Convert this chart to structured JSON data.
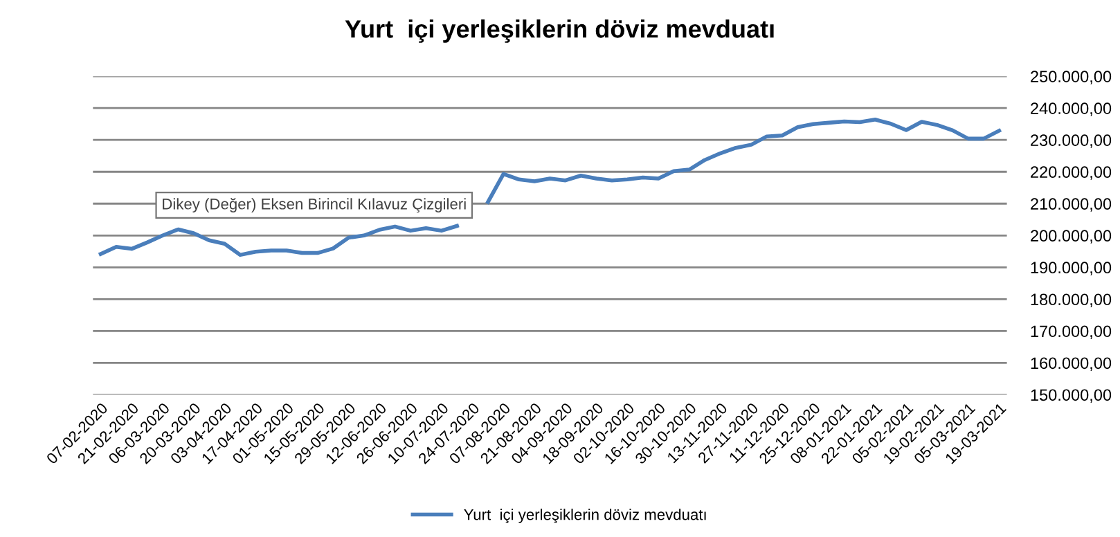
{
  "chart_data": {
    "type": "line",
    "title": "Yurt  içi yerleşiklerin döviz mevduatı",
    "categories": [
      "07-02-2020",
      null,
      "21-02-2020",
      null,
      "06-03-2020",
      null,
      "20-03-2020",
      null,
      "03-04-2020",
      null,
      "17-04-2020",
      null,
      "01-05-2020",
      null,
      "15-05-2020",
      null,
      "29-05-2020",
      null,
      "12-06-2020",
      null,
      "26-06-2020",
      null,
      "10-07-2020",
      null,
      "24-07-2020",
      null,
      "07-08-2020",
      null,
      "21-08-2020",
      null,
      "04-09-2020",
      null,
      "18-09-2020",
      null,
      "02-10-2020",
      null,
      "16-10-2020",
      null,
      "30-10-2020",
      null,
      "13-11-2020",
      null,
      "27-11-2020",
      null,
      "11-12-2020",
      null,
      "25-12-2020",
      null,
      "08-01-2021",
      null,
      "22-01-2021",
      null,
      "05-02-2021",
      null,
      "19-02-2021",
      null,
      "05-03-2021",
      null,
      "19-03-2021"
    ],
    "series": [
      {
        "name": "Yurt  içi yerleşiklerin döviz mevduatı",
        "color": "#4a7ebb",
        "values": [
          194200,
          196400,
          195800,
          197800,
          200000,
          201900,
          200700,
          198500,
          197400,
          193900,
          194900,
          195300,
          195300,
          194500,
          194500,
          195900,
          199300,
          200000,
          201800,
          202800,
          201500,
          202300,
          201500,
          203000,
          null,
          210500,
          219300,
          217600,
          217000,
          217900,
          217300,
          218800,
          217900,
          217300,
          217600,
          218200,
          217900,
          220200,
          220700,
          223700,
          225800,
          227500,
          228500,
          231100,
          231400,
          234000,
          235000,
          235400,
          235800,
          235600,
          236400,
          235100,
          233100,
          235700,
          234700,
          233000,
          230400,
          230400,
          232900
        ]
      }
    ],
    "ylim": [
      150000,
      250000
    ],
    "yticks": [
      {
        "value": 150000,
        "label": "150.000,00"
      },
      {
        "value": 160000,
        "label": "160.000,00"
      },
      {
        "value": 170000,
        "label": "170.000,00"
      },
      {
        "value": 180000,
        "label": "180.000,00"
      },
      {
        "value": 190000,
        "label": "190.000,00"
      },
      {
        "value": 200000,
        "label": "200.000,00"
      },
      {
        "value": 210000,
        "label": "210.000,00"
      },
      {
        "value": 220000,
        "label": "220.000,00"
      },
      {
        "value": 230000,
        "label": "230.000,00"
      },
      {
        "value": 240000,
        "label": "240.000,00"
      },
      {
        "value": 250000,
        "label": "250.000,00"
      }
    ],
    "grid": "y",
    "legend": "bottom",
    "marker": "none",
    "line_style": "solid",
    "annotations": [
      "Dikey (Değer) Eksen Birincil Kılavuz Çizgileri"
    ]
  }
}
